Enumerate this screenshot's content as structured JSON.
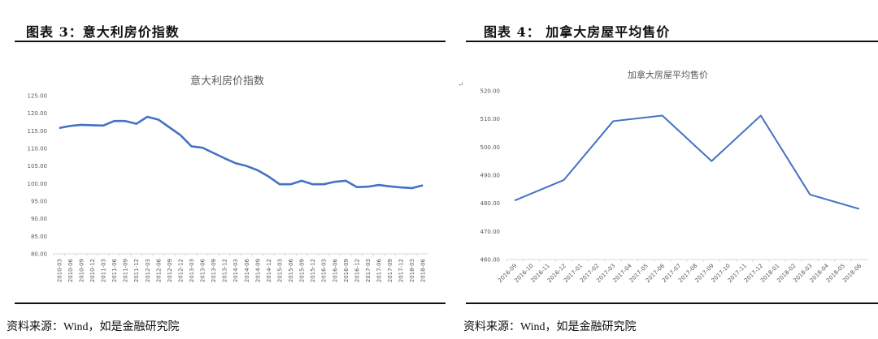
{
  "left_panel": {
    "figure_title": "图表 3：意大利房价指数",
    "source": "资料来源：Wind，如是金融研究院"
  },
  "right_panel": {
    "figure_title": "图表 4：  加拿大房屋平均售价",
    "source": "资料来源：Wind，如是金融研究院"
  },
  "chart_data": [
    {
      "type": "line",
      "title": "意大利房价指数",
      "xlabel": "",
      "ylabel": "",
      "ylim": [
        80,
        125
      ],
      "yticks": [
        "80.00",
        "85.00",
        "90.00",
        "95.00",
        "100.00",
        "105.00",
        "110.00",
        "115.00",
        "120.00",
        "125.00"
      ],
      "grid": false,
      "color": "#4472C4",
      "categories": [
        "2010-03",
        "2010-06",
        "2010-09",
        "2010-12",
        "2011-03",
        "2011-06",
        "2011-09",
        "2011-12",
        "2012-03",
        "2012-06",
        "2012-09",
        "2012-12",
        "2013-03",
        "2013-06",
        "2013-09",
        "2013-12",
        "2014-03",
        "2014-06",
        "2014-09",
        "2014-12",
        "2015-03",
        "2015-06",
        "2015-09",
        "2015-12",
        "2016-03",
        "2016-06",
        "2016-09",
        "2016-12",
        "2017-03",
        "2017-06",
        "2017-09",
        "2017-12",
        "2018-03",
        "2018-06"
      ],
      "values": [
        115.8,
        116.4,
        116.7,
        116.6,
        116.5,
        117.8,
        117.8,
        117.0,
        119.0,
        118.2,
        116.0,
        113.8,
        110.6,
        110.2,
        108.7,
        107.2,
        105.8,
        105.0,
        103.8,
        102.0,
        99.8,
        99.8,
        100.8,
        99.8,
        99.8,
        100.5,
        100.8,
        99.0,
        99.1,
        99.6,
        99.2,
        98.9,
        98.7,
        99.5
      ]
    },
    {
      "type": "line",
      "title": "加拿大房屋平均售价",
      "xlabel": "",
      "ylabel": "",
      "ylim": [
        460,
        520
      ],
      "yticks": [
        "460.00",
        "470.00",
        "480.00",
        "490.00",
        "500.00",
        "510.00",
        "520.00"
      ],
      "grid": false,
      "color": "#4472C4",
      "categories": [
        "2016-09",
        "2016-10",
        "2016-11",
        "2016-12",
        "2017-01",
        "2017-02",
        "2017-03",
        "2017-04",
        "2017-05",
        "2017-06",
        "2017-07",
        "2017-08",
        "2017-09",
        "2017-10",
        "2017-11",
        "2017-12",
        "2018-01",
        "2018-02",
        "2018-03",
        "2018-04",
        "2018-05",
        "2018-06"
      ],
      "points": [
        {
          "x": "2016-09",
          "y": 481
        },
        {
          "x": "2016-12",
          "y": 488.3
        },
        {
          "x": "2017-03",
          "y": 509.2
        },
        {
          "x": "2017-06",
          "y": 511.2
        },
        {
          "x": "2017-09",
          "y": 495
        },
        {
          "x": "2017-12",
          "y": 511.2
        },
        {
          "x": "2018-03",
          "y": 483.1
        },
        {
          "x": "2018-06",
          "y": 478
        }
      ]
    }
  ]
}
